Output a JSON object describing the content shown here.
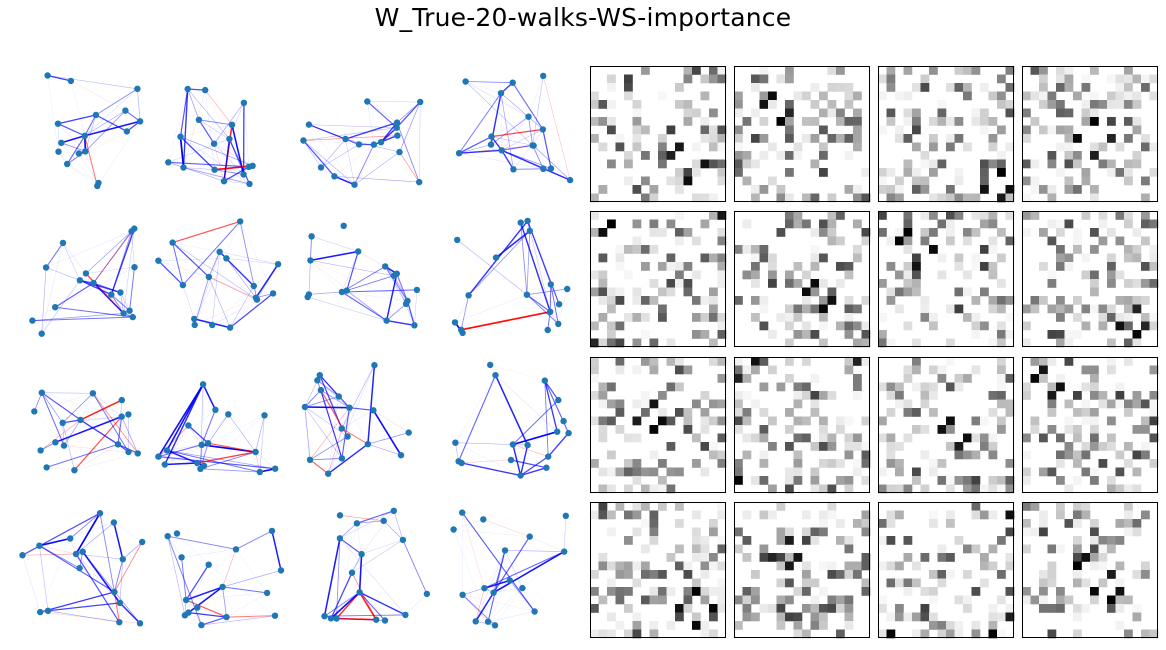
{
  "title": "W_True-20-walks-WS-importance",
  "colors": {
    "node": "#1f77b4",
    "edge_positive": "#0000ff",
    "edge_negative": "#ff0000",
    "matrix_border": "#000000",
    "matrix_background": "#ffffff"
  },
  "chart_data": {
    "type": "heatmap",
    "title": "W_True-20-walks-WS-importance",
    "layout": "4 rows x 8 columns: left 4x4 block are weighted graph drawings, right 4x4 block are 16x16 grayscale matrix heatmaps",
    "graph_nodes_per_panel": 16,
    "matrix_size": 16,
    "matrix_colormap": "Greys",
    "axis_ticks": "none",
    "graphs": [
      {
        "row": 0,
        "col": 0
      },
      {
        "row": 0,
        "col": 1
      },
      {
        "row": 0,
        "col": 2
      },
      {
        "row": 0,
        "col": 3
      },
      {
        "row": 1,
        "col": 0
      },
      {
        "row": 1,
        "col": 1
      },
      {
        "row": 1,
        "col": 2
      },
      {
        "row": 1,
        "col": 3
      },
      {
        "row": 2,
        "col": 0
      },
      {
        "row": 2,
        "col": 1
      },
      {
        "row": 2,
        "col": 2
      },
      {
        "row": 2,
        "col": 3
      },
      {
        "row": 3,
        "col": 0
      },
      {
        "row": 3,
        "col": 1
      },
      {
        "row": 3,
        "col": 2
      },
      {
        "row": 3,
        "col": 3
      }
    ],
    "matrices": [
      {
        "row": 0,
        "col": 0
      },
      {
        "row": 0,
        "col": 1
      },
      {
        "row": 0,
        "col": 2
      },
      {
        "row": 0,
        "col": 3
      },
      {
        "row": 1,
        "col": 0
      },
      {
        "row": 1,
        "col": 1
      },
      {
        "row": 1,
        "col": 2
      },
      {
        "row": 1,
        "col": 3
      },
      {
        "row": 2,
        "col": 0
      },
      {
        "row": 2,
        "col": 1
      },
      {
        "row": 2,
        "col": 2
      },
      {
        "row": 2,
        "col": 3
      },
      {
        "row": 3,
        "col": 0
      },
      {
        "row": 3,
        "col": 1
      },
      {
        "row": 3,
        "col": 2
      },
      {
        "row": 3,
        "col": 3
      }
    ]
  }
}
